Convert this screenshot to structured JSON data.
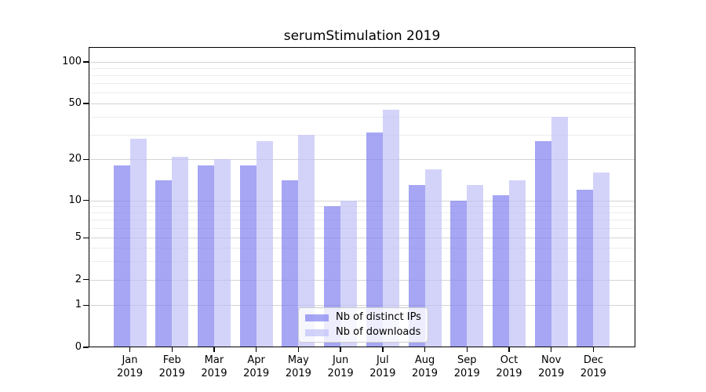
{
  "chart_data": {
    "type": "bar",
    "title": "serumStimulation 2019",
    "categories": [
      "Jan",
      "Feb",
      "Mar",
      "Apr",
      "May",
      "Jun",
      "Jul",
      "Aug",
      "Sep",
      "Oct",
      "Nov",
      "Dec"
    ],
    "category_year": "2019",
    "series": [
      {
        "name": "Nb of distinct IPs",
        "color": "rgba(128,128,240,0.7)",
        "values": [
          18,
          14,
          18,
          18,
          14,
          9,
          31,
          13,
          10,
          11,
          27,
          12
        ]
      },
      {
        "name": "Nb of downloads",
        "color": "rgba(192,192,248,0.7)",
        "values": [
          28,
          21,
          20,
          27,
          30,
          10,
          45,
          17,
          13,
          14,
          40,
          16
        ]
      }
    ],
    "yscale": "symlog",
    "ylim": [
      0,
      128
    ],
    "y_axis_ticks": [
      0,
      1,
      2,
      5,
      10,
      20,
      50,
      100
    ],
    "y_minor_gridlines": [
      3,
      4,
      6,
      7,
      8,
      9,
      30,
      40,
      60,
      70,
      80,
      90
    ],
    "grid": true,
    "legend_position": "lower center"
  },
  "colors": {
    "grid_major": "#d4d4d4",
    "grid_minor": "#ececec",
    "axis": "#000000",
    "legend_border": "#cccccc",
    "background": "#ffffff"
  }
}
